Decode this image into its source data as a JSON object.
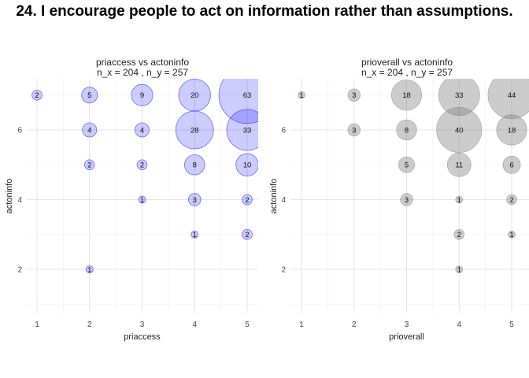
{
  "title": "24. I encourage people to act on information rather than assumptions.",
  "chart_data": [
    {
      "type": "scatter",
      "title_line1": "priaccess vs actoninfo",
      "title_line2": "n_x = 204 , n_y = 257",
      "xlabel": "priaccess",
      "ylabel": "actoninfo",
      "xlim": [
        0.8,
        5.2
      ],
      "ylim": [
        0.8,
        7.2
      ],
      "x_ticks": [
        1,
        2,
        3,
        4,
        5
      ],
      "y_ticks": [
        2,
        4,
        6
      ],
      "grid": true,
      "color": "#0000ff",
      "points": [
        {
          "x": 1,
          "y": 7,
          "n": 2
        },
        {
          "x": 2,
          "y": 7,
          "n": 5
        },
        {
          "x": 3,
          "y": 7,
          "n": 9
        },
        {
          "x": 4,
          "y": 7,
          "n": 20
        },
        {
          "x": 5,
          "y": 7,
          "n": 63
        },
        {
          "x": 2,
          "y": 6,
          "n": 4
        },
        {
          "x": 3,
          "y": 6,
          "n": 4
        },
        {
          "x": 4,
          "y": 6,
          "n": 28
        },
        {
          "x": 5,
          "y": 6,
          "n": 33
        },
        {
          "x": 2,
          "y": 5,
          "n": 2
        },
        {
          "x": 3,
          "y": 5,
          "n": 2
        },
        {
          "x": 4,
          "y": 5,
          "n": 8
        },
        {
          "x": 5,
          "y": 5,
          "n": 10
        },
        {
          "x": 3,
          "y": 4,
          "n": 1
        },
        {
          "x": 4,
          "y": 4,
          "n": 3
        },
        {
          "x": 5,
          "y": 4,
          "n": 2
        },
        {
          "x": 4,
          "y": 3,
          "n": 1
        },
        {
          "x": 5,
          "y": 3,
          "n": 2
        },
        {
          "x": 2,
          "y": 2,
          "n": 1
        }
      ]
    },
    {
      "type": "scatter",
      "title_line1": "prioverall vs actoninfo",
      "title_line2": "n_x = 204 , n_y = 257",
      "xlabel": "prioverall",
      "ylabel": "actoninfo",
      "xlim": [
        0.8,
        5.2
      ],
      "ylim": [
        0.8,
        7.2
      ],
      "x_ticks": [
        1,
        2,
        3,
        4,
        5
      ],
      "y_ticks": [
        2,
        4,
        6
      ],
      "grid": true,
      "color": "#808080",
      "points": [
        {
          "x": 1,
          "y": 7,
          "n": 1
        },
        {
          "x": 2,
          "y": 7,
          "n": 3
        },
        {
          "x": 3,
          "y": 7,
          "n": 18
        },
        {
          "x": 4,
          "y": 7,
          "n": 33
        },
        {
          "x": 5,
          "y": 7,
          "n": 44
        },
        {
          "x": 2,
          "y": 6,
          "n": 3
        },
        {
          "x": 3,
          "y": 6,
          "n": 8
        },
        {
          "x": 4,
          "y": 6,
          "n": 40
        },
        {
          "x": 5,
          "y": 6,
          "n": 18
        },
        {
          "x": 3,
          "y": 5,
          "n": 5
        },
        {
          "x": 4,
          "y": 5,
          "n": 11
        },
        {
          "x": 5,
          "y": 5,
          "n": 6
        },
        {
          "x": 3,
          "y": 4,
          "n": 3
        },
        {
          "x": 4,
          "y": 4,
          "n": 1
        },
        {
          "x": 5,
          "y": 4,
          "n": 2
        },
        {
          "x": 4,
          "y": 3,
          "n": 2
        },
        {
          "x": 5,
          "y": 3,
          "n": 1
        },
        {
          "x": 4,
          "y": 2,
          "n": 1
        }
      ]
    }
  ]
}
